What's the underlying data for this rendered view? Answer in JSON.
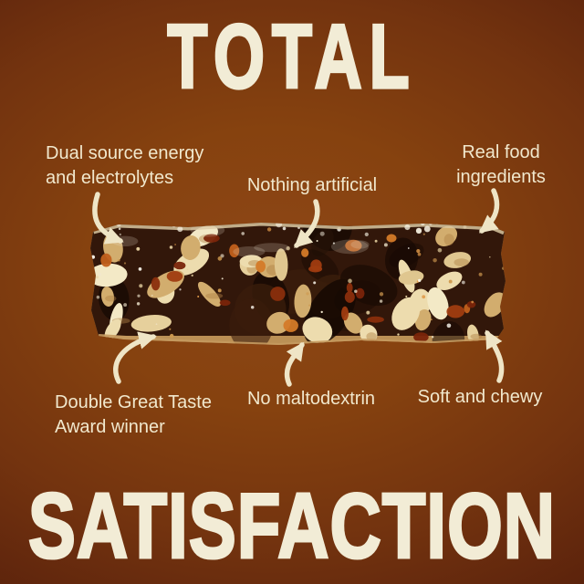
{
  "titles": {
    "top": "TOTAL",
    "bottom": "SATISFACTION"
  },
  "callouts": {
    "dual_source_line1": "Dual source energy",
    "dual_source_line2": "and electrolytes",
    "nothing_artificial": "Nothing artificial",
    "real_food_line1": "Real food",
    "real_food_line2": "ingredients",
    "great_taste_line1": "Double Great Taste",
    "great_taste_line2": "Award winner",
    "no_maltodextrin": "No maltodextrin",
    "soft_chewy": "Soft and chewy"
  },
  "bar": {
    "alt": "Cross-section photo of a dark fruit and nut energy bar"
  },
  "colors": {
    "background_center": "#8e4717",
    "background_edge": "#451708",
    "title_cream": "#f2ecd6",
    "callout_cream": "#f1e8cd",
    "arrow_cream": "#efe5c6",
    "bar_body_brown": "#32170a",
    "bar_crust_tan": "#bb9055",
    "nut_cream": "#eddcae"
  }
}
